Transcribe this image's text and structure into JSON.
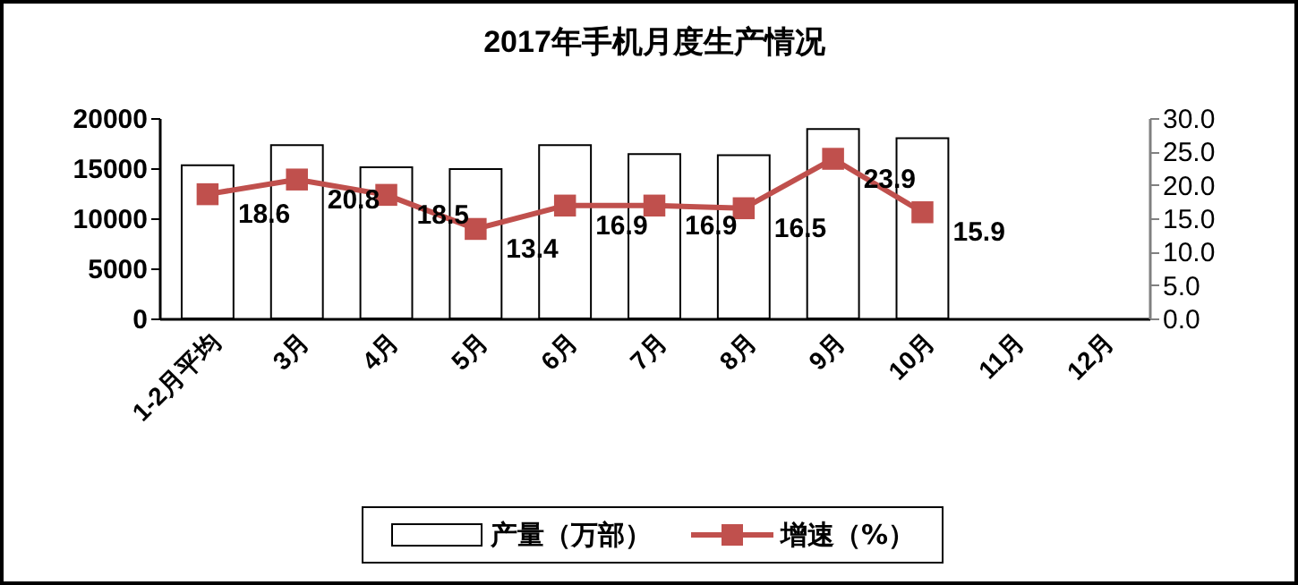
{
  "chart_data": {
    "type": "bar",
    "title": "2017年手机月度生产情况",
    "categories": [
      "1-2月平均",
      "3月",
      "4月",
      "5月",
      "6月",
      "7月",
      "8月",
      "9月",
      "10月",
      "11月",
      "12月"
    ],
    "series": [
      {
        "name": "产量（万部）",
        "color": "#ffffff",
        "values": [
          15300,
          17300,
          15100,
          14900,
          17300,
          16400,
          16300,
          18900,
          18000,
          null,
          null
        ]
      },
      {
        "name": "增速（%）",
        "type": "line",
        "axis": "y2",
        "color": "#c0504d",
        "marker": "square",
        "values": [
          18.6,
          20.8,
          18.5,
          13.4,
          16.9,
          16.9,
          16.5,
          23.9,
          15.9,
          null,
          null
        ],
        "value_labels": [
          "18.6",
          "20.8",
          "18.5",
          "13.4",
          "16.9",
          "16.9",
          "16.5",
          "23.9",
          "15.9",
          null,
          null
        ]
      }
    ],
    "ylim": [
      0,
      20000
    ],
    "yticks": [
      0,
      5000,
      10000,
      15000,
      20000
    ],
    "y2lim": [
      0,
      30
    ],
    "y2ticks": [
      {
        "value": 0,
        "label": "0.0"
      },
      {
        "value": 5,
        "label": "5.0"
      },
      {
        "value": 10,
        "label": "10.0"
      },
      {
        "value": 15,
        "label": "15.0"
      },
      {
        "value": 20,
        "label": "20.0"
      },
      {
        "value": 25,
        "label": "25.0"
      },
      {
        "value": 30,
        "label": "30.0"
      }
    ],
    "grid": false,
    "legend": "bottom"
  }
}
